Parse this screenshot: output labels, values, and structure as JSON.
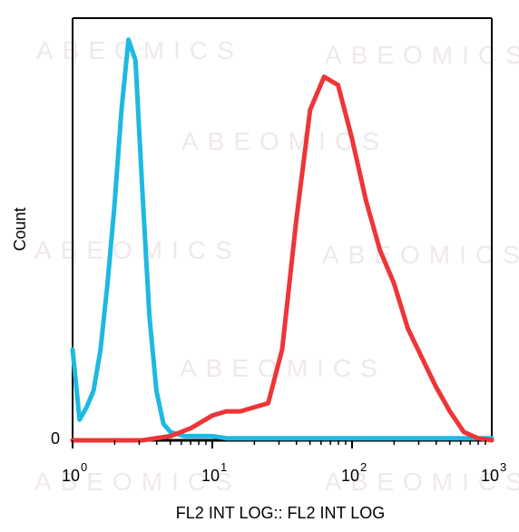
{
  "watermark_text": "ABEOMICS",
  "chart_data": {
    "type": "line",
    "title": "",
    "xlabel": "FL2 INT LOG:: FL2 INT LOG",
    "ylabel": "Count",
    "x_scale": "log",
    "xlim": [
      0.0,
      3.0
    ],
    "ylim": [
      0,
      100
    ],
    "x_ticks": [
      {
        "base": "10",
        "exp": "0",
        "value": 0
      },
      {
        "base": "10",
        "exp": "1",
        "value": 1
      },
      {
        "base": "10",
        "exp": "2",
        "value": 2
      },
      {
        "base": "10",
        "exp": "3",
        "value": 3
      }
    ],
    "y_ticks": [
      {
        "label": "0",
        "value": 0
      }
    ],
    "grid": false,
    "series": [
      {
        "color": "#1eb9e2",
        "x": [
          0.0,
          0.05,
          0.1,
          0.15,
          0.2,
          0.25,
          0.3,
          0.35,
          0.4,
          0.45,
          0.5,
          0.55,
          0.6,
          0.65,
          0.7,
          0.75,
          0.8,
          0.85,
          0.9,
          0.95,
          1.0,
          1.1,
          1.2,
          1.3,
          1.4,
          1.5,
          1.6,
          1.7,
          1.8,
          1.9,
          2.0,
          2.2,
          2.4,
          2.6,
          2.8,
          3.0
        ],
        "values": [
          22,
          5,
          8,
          12,
          22,
          38,
          57,
          80,
          97,
          92,
          60,
          30,
          12,
          4,
          2,
          1.5,
          1,
          1,
          1,
          1,
          1,
          0.5,
          0.5,
          0.5,
          0.5,
          0.5,
          0.5,
          0.5,
          0.5,
          0.5,
          0.5,
          0.5,
          0.5,
          0.5,
          0.5,
          0.5
        ]
      },
      {
        "color": "#ee3537",
        "x": [
          0.0,
          0.3,
          0.5,
          0.7,
          0.85,
          1.0,
          1.1,
          1.2,
          1.3,
          1.4,
          1.5,
          1.6,
          1.7,
          1.8,
          1.9,
          2.0,
          2.1,
          2.2,
          2.3,
          2.4,
          2.5,
          2.6,
          2.7,
          2.8,
          2.9,
          3.0
        ],
        "values": [
          0,
          0,
          0,
          1,
          3,
          6,
          7,
          7,
          8,
          9,
          22,
          53,
          80,
          88,
          86,
          73,
          58,
          46,
          38,
          27,
          20,
          13,
          7,
          2,
          0.5,
          0
        ]
      }
    ]
  }
}
